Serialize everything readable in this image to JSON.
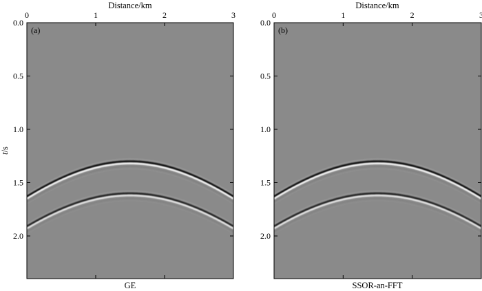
{
  "chart_data": [
    {
      "type": "heatmap",
      "subtype": "seismic-record",
      "panel_label": "(a)",
      "caption": "GE",
      "xlabel": "Distance/km",
      "ylabel_italic": "t",
      "ylabel_rest": "/s",
      "xlim": [
        0,
        3
      ],
      "ylim": [
        0,
        2.4
      ],
      "x_ticks": [
        "0",
        "1",
        "2",
        "3"
      ],
      "x_tick_values": [
        0,
        1,
        2,
        3
      ],
      "y_ticks": [
        "0.0",
        "0.5",
        "1.0",
        "1.5",
        "2.0"
      ],
      "y_tick_values": [
        0.0,
        0.5,
        1.0,
        1.5,
        2.0
      ],
      "reflections": [
        {
          "name": "event-1",
          "apex_x": 1.5,
          "apex_t": 1.3,
          "edge_t": 1.63,
          "amplitude": 1.0
        },
        {
          "name": "event-2",
          "apex_x": 1.5,
          "apex_t": 1.6,
          "edge_t": 1.91,
          "amplitude": 0.85
        }
      ]
    },
    {
      "type": "heatmap",
      "subtype": "seismic-record",
      "panel_label": "(b)",
      "caption": "SSOR-an-FFT",
      "xlabel": "Distance/km",
      "xlim": [
        0,
        3
      ],
      "ylim": [
        0,
        2.4
      ],
      "x_ticks": [
        "0",
        "1",
        "2",
        "3"
      ],
      "x_tick_values": [
        0,
        1,
        2,
        3
      ],
      "y_ticks": [
        "0.0",
        "0.5",
        "1.0",
        "1.5",
        "2.0"
      ],
      "y_tick_values": [
        0.0,
        0.5,
        1.0,
        1.5,
        2.0
      ],
      "reflections": [
        {
          "name": "event-1",
          "apex_x": 1.5,
          "apex_t": 1.3,
          "edge_t": 1.63,
          "amplitude": 1.0
        },
        {
          "name": "event-2",
          "apex_x": 1.5,
          "apex_t": 1.6,
          "edge_t": 1.91,
          "amplitude": 0.85
        }
      ]
    }
  ],
  "colors": {
    "background": "#8a8a8a",
    "dark_band": "#0a0a0a",
    "light_band": "#f2f2f2",
    "frame": "#000000"
  }
}
